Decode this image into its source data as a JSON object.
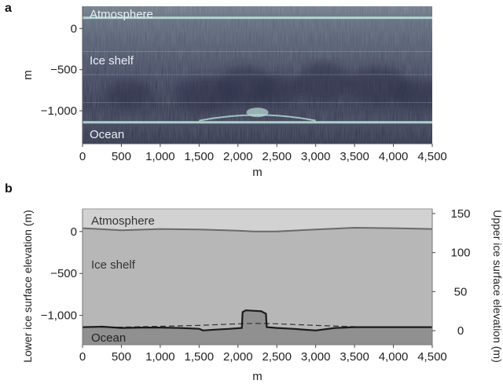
{
  "panel_a": {
    "letter": "a",
    "xlabel": "m",
    "ylabel": "m",
    "layer_labels": {
      "atmosphere": "Atmosphere",
      "ice_shelf": "Ice shelf",
      "ocean": "Ocean"
    }
  },
  "panel_b": {
    "letter": "b",
    "xlabel": "m",
    "ylabel_left": "Lower ice surface elevation (m)",
    "ylabel_right": "Upper ice surface elevation (m)",
    "layer_labels": {
      "atmosphere": "Atmosphere",
      "ice_shelf": "Ice shelf",
      "ocean": "Ocean"
    }
  },
  "colors": {
    "radar_dark": "#2e3047",
    "radar_light": "#b9ddd9",
    "atmosphere": "#d2d2d2",
    "ice_shelf": "#b7b7b7",
    "ocean": "#909090",
    "surface_line": "#6a6a6a",
    "base_line": "#1a1a1a"
  },
  "chart_data": [
    {
      "type": "heatmap",
      "title": "",
      "xlabel": "m",
      "ylabel": "m",
      "xlim": [
        0,
        4500
      ],
      "ylim": [
        -1400,
        270
      ],
      "x_ticks": [
        0,
        500,
        1000,
        1500,
        2000,
        2500,
        3000,
        3500,
        4000,
        4500
      ],
      "x_tick_labels": [
        "0",
        "500",
        "1,000",
        "1,500",
        "2,000",
        "2,500",
        "3,000",
        "3,500",
        "4,000",
        "4,500"
      ],
      "y_ticks": [
        0,
        -500,
        -1000
      ],
      "y_tick_labels": [
        "0",
        "−500",
        "−1,000"
      ],
      "bright_reflectors": [
        {
          "name": "surface",
          "y": 130
        },
        {
          "name": "base",
          "y": -1140
        }
      ],
      "layer_labels": [
        "Atmosphere",
        "Ice shelf",
        "Ocean"
      ]
    },
    {
      "type": "line",
      "title": "",
      "xlabel": "m",
      "ylabel": "Lower ice surface elevation (m)",
      "ylabel_right": "Upper ice surface elevation (m)",
      "xlim": [
        0,
        4500
      ],
      "ylim": [
        -1350,
        270
      ],
      "y2lim": [
        -18,
        156
      ],
      "x_ticks": [
        0,
        500,
        1000,
        1500,
        2000,
        2500,
        3000,
        3500,
        4000,
        4500
      ],
      "x_tick_labels": [
        "0",
        "500",
        "1,000",
        "1,500",
        "2,000",
        "2,500",
        "3,000",
        "3,500",
        "4,000",
        "4,500"
      ],
      "y_ticks": [
        0,
        -500,
        -1000
      ],
      "y_tick_labels": [
        "0",
        "−500",
        "−1,000"
      ],
      "y2_ticks": [
        150,
        100,
        50,
        0
      ],
      "y2_tick_labels": [
        "150",
        "100",
        "50",
        "0"
      ],
      "series": [
        {
          "style": "upper-surface",
          "x": [
            0,
            500,
            1000,
            1500,
            2000,
            2200,
            2500,
            3000,
            3500,
            4000,
            4500
          ],
          "y": [
            40,
            15,
            30,
            25,
            10,
            0,
            0,
            25,
            45,
            40,
            30
          ]
        },
        {
          "style": "lower-surface",
          "x": [
            0,
            250,
            500,
            750,
            1000,
            1250,
            1500,
            1550,
            1700,
            1900,
            2050,
            2060,
            2100,
            2300,
            2360,
            2370,
            2500,
            2700,
            3000,
            3250,
            3500,
            4000,
            4500
          ],
          "y": [
            -1140,
            -1135,
            -1150,
            -1145,
            -1145,
            -1150,
            -1160,
            -1180,
            -1170,
            -1160,
            -1150,
            -960,
            -940,
            -950,
            -980,
            -1140,
            -1150,
            -1160,
            -1180,
            -1150,
            -1140,
            -1140,
            -1140
          ]
        },
        {
          "style": "dashed",
          "x": [
            0,
            500,
            1000,
            1500,
            2000,
            2250,
            2500,
            3000,
            3500,
            4000,
            4500
          ],
          "y": [
            -1140,
            -1140,
            -1130,
            -1120,
            -1100,
            -1095,
            -1100,
            -1120,
            -1135,
            -1140,
            -1140
          ]
        }
      ],
      "layer_labels": [
        "Atmosphere",
        "Ice shelf",
        "Ocean"
      ]
    }
  ]
}
